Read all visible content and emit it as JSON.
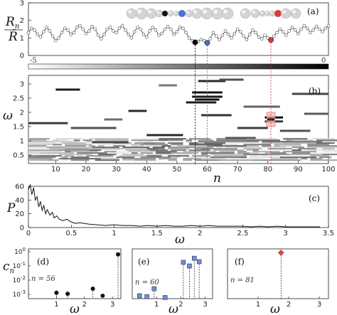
{
  "figure": {
    "panel_labels": [
      "(a)",
      "(b)",
      "(c)",
      "(d)",
      "(e)",
      "(f)"
    ],
    "colorbar_labels": [
      "-5",
      "0"
    ],
    "axis_texts": {
      "a_ylabel_num": "R",
      "a_ylabel_num_sub": "n",
      "a_ylabel_den": "R̄",
      "b_ylabel": "ω",
      "b_xlabel": "n",
      "c_ylabel": "P",
      "c_xlabel": "ω",
      "d_ylabel": "c",
      "d_ylabel_sub": "n",
      "def_xlabel": "ω"
    },
    "insets": {
      "d": "n = 56",
      "e": "n = 60",
      "f": "n = 81"
    },
    "colors": {
      "black_bead": "#000000",
      "blue_bead": "#4a6fcf",
      "red_bead": "#d83a3a",
      "blue_square": "#6b8fd6",
      "red_diamond": "#e0483c",
      "highlight_box": "#f2b6b6"
    }
  },
  "chart_data": [
    {
      "panel": "(a)",
      "type": "line",
      "xlim": [
        1,
        100
      ],
      "ylim": [
        0,
        3
      ],
      "yticks": [
        0,
        1,
        2,
        3
      ],
      "marked_sites": [
        {
          "n": 56,
          "y": 0.75,
          "color": "#000000"
        },
        {
          "n": 60,
          "y": 0.72,
          "color": "#4a6fcf"
        },
        {
          "n": 81,
          "y": 0.88,
          "color": "#d83a3a"
        }
      ],
      "y_values": [
        1.3,
        1.55,
        1.45,
        1.2,
        1.05,
        1.35,
        1.6,
        1.4,
        1.1,
        0.85,
        1.0,
        1.3,
        1.55,
        1.45,
        1.2,
        1.3,
        1.6,
        1.7,
        1.5,
        1.25,
        1.4,
        1.65,
        1.5,
        1.15,
        0.95,
        1.2,
        1.5,
        1.6,
        1.4,
        1.3,
        1.55,
        1.7,
        1.45,
        1.2,
        1.0,
        1.35,
        1.6,
        1.5,
        1.2,
        1.05,
        1.4,
        1.6,
        1.45,
        1.15,
        1.25,
        1.5,
        1.65,
        1.5,
        1.2,
        1.35,
        1.6,
        1.55,
        1.3,
        1.0,
        0.85,
        0.75,
        0.8,
        0.9,
        0.85,
        0.72,
        0.95,
        1.3,
        1.1,
        0.9,
        1.15,
        1.4,
        1.2,
        1.0,
        1.25,
        1.5,
        1.35,
        1.1,
        0.9,
        1.2,
        1.45,
        1.3,
        1.05,
        0.95,
        1.15,
        1.0,
        0.88,
        1.1,
        1.3,
        1.5,
        1.35,
        1.15,
        1.4,
        1.6,
        1.45,
        1.25,
        1.5,
        1.7,
        1.55,
        1.3,
        1.45,
        1.65,
        1.5,
        1.35,
        1.55,
        1.7
      ]
    },
    {
      "panel": "(b)",
      "type": "heatmap",
      "xlim": [
        1,
        100
      ],
      "ylim": [
        0.2,
        3.3
      ],
      "xticks": [
        10,
        20,
        30,
        40,
        50,
        60,
        70,
        80,
        90,
        100
      ],
      "yticks": [
        0.5,
        1,
        1.5,
        2,
        2.5,
        3
      ],
      "marked_n": [
        56,
        60,
        81
      ],
      "highlight": {
        "n": 81,
        "omega": 1.75
      }
    },
    {
      "panel": "(c)",
      "type": "line",
      "xlim": [
        0,
        3.5
      ],
      "ylim": [
        0,
        60
      ],
      "xticks": [
        0,
        0.5,
        1,
        1.5,
        2,
        2.5,
        3,
        3.5
      ],
      "yticks": [
        0,
        20,
        40,
        60
      ],
      "x": [
        0,
        0.02,
        0.04,
        0.06,
        0.08,
        0.1,
        0.12,
        0.14,
        0.16,
        0.18,
        0.2,
        0.22,
        0.25,
        0.28,
        0.3,
        0.33,
        0.36,
        0.4,
        0.45,
        0.5,
        0.55,
        0.6,
        0.7,
        0.8,
        0.9,
        1.0,
        1.1,
        1.2,
        1.3,
        1.4,
        1.5,
        1.6,
        1.7,
        1.8,
        1.9,
        2.0,
        2.1,
        2.2,
        2.3,
        2.4,
        2.5,
        2.6,
        2.7,
        2.8,
        2.9,
        3.0,
        3.1,
        3.2,
        3.3,
        3.4
      ],
      "y": [
        55,
        62,
        48,
        58,
        40,
        45,
        30,
        38,
        25,
        32,
        20,
        26,
        18,
        22,
        14,
        17,
        12,
        10,
        12,
        8,
        6,
        7,
        5,
        4,
        3,
        4,
        3,
        3,
        2,
        3,
        2,
        3,
        2,
        2,
        3,
        2,
        3,
        2,
        2,
        2,
        2,
        1,
        2,
        1,
        2,
        1,
        1,
        1,
        1,
        1
      ]
    },
    {
      "panel": "(d)",
      "type": "scatter",
      "xlim": [
        0,
        3.3
      ],
      "yscale": "log",
      "xticks": [
        1,
        2,
        3
      ],
      "yticks": [
        "10^0",
        "10^-1",
        "10^-2",
        "10^-3"
      ],
      "x": [
        1.0,
        1.4,
        2.3,
        2.65,
        3.2
      ],
      "y": [
        0.0013,
        0.0011,
        0.0025,
        0.0008,
        0.65
      ]
    },
    {
      "panel": "(e)",
      "type": "scatter",
      "xlim": [
        0,
        3.3
      ],
      "yscale": "log",
      "xticks": [
        1,
        2,
        3
      ],
      "x": [
        0.3,
        0.6,
        0.9,
        1.35,
        2.1,
        2.35,
        2.55,
        2.75
      ],
      "y": [
        0.0008,
        0.0007,
        0.0025,
        0.0006,
        0.18,
        0.1,
        0.35,
        0.2
      ]
    },
    {
      "panel": "(f)",
      "type": "scatter",
      "xlim": [
        0,
        3.3
      ],
      "yscale": "log",
      "xticks": [
        1,
        2,
        3
      ],
      "x": [
        1.75
      ],
      "y": [
        0.85
      ]
    }
  ]
}
